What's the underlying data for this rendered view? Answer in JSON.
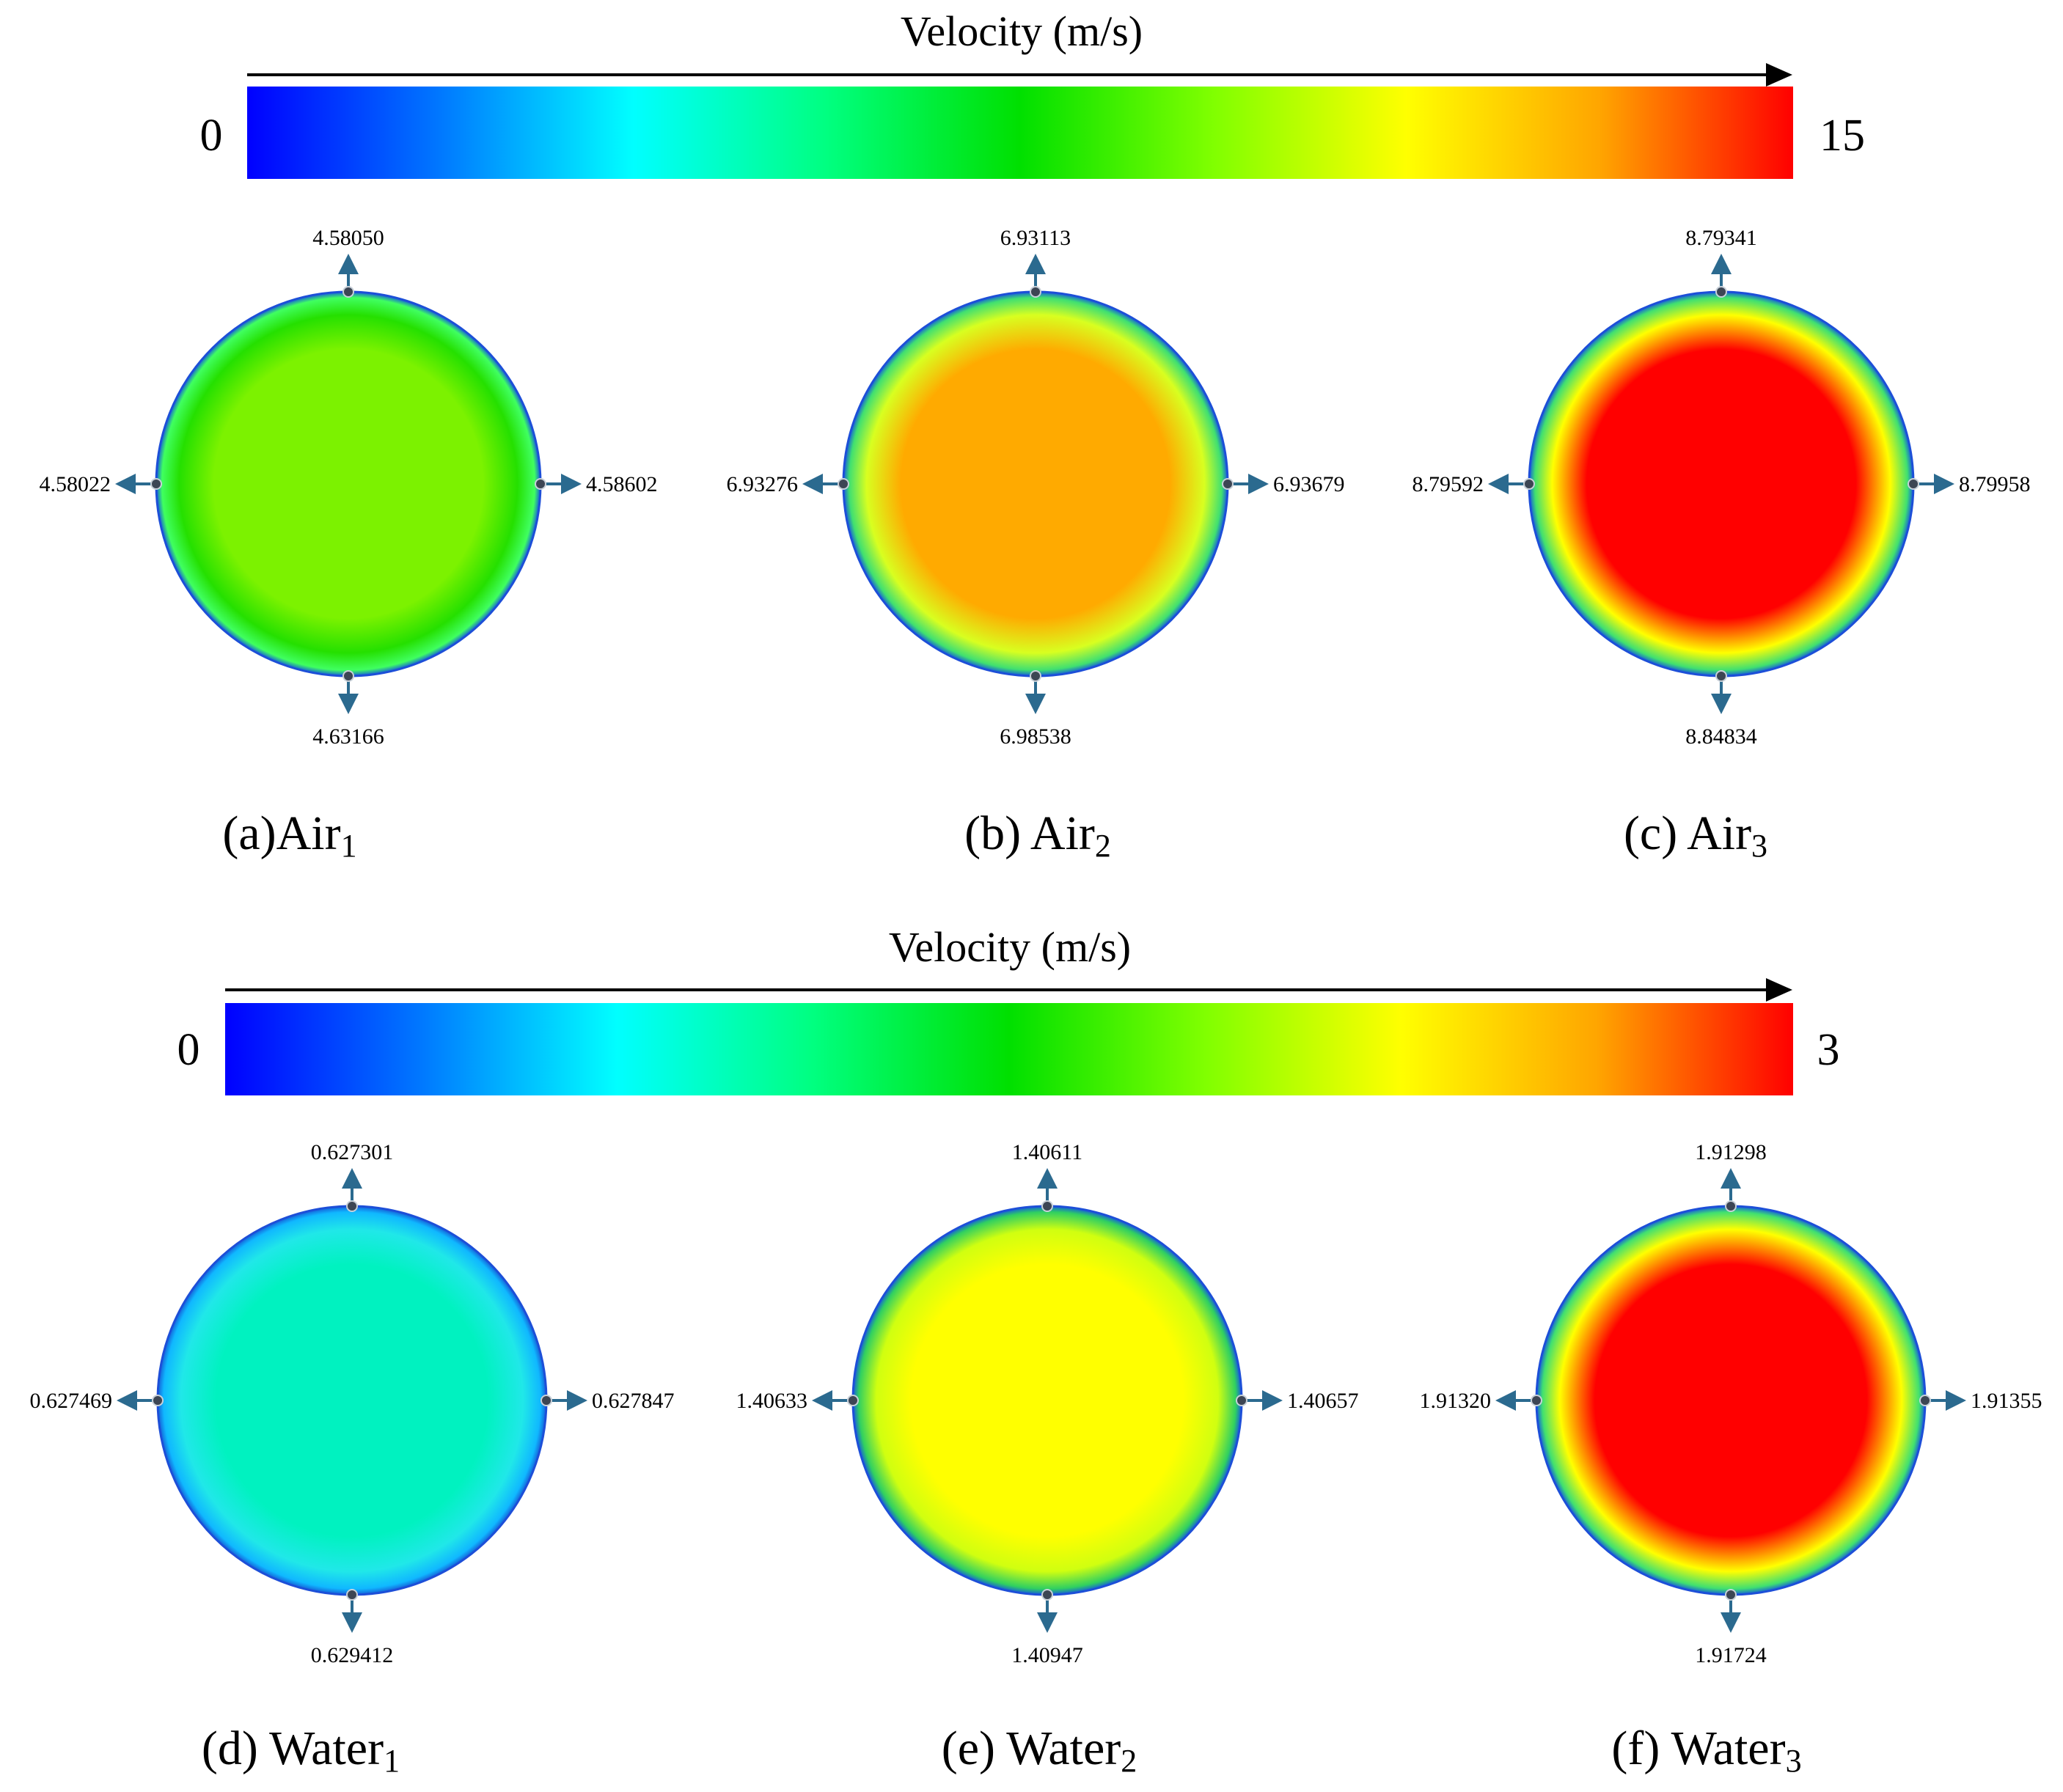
{
  "figure": {
    "air_scale": {
      "title": "Velocity (m/s)",
      "min_label": "0",
      "max_label": "15",
      "min": 0,
      "max": 15
    },
    "water_scale": {
      "title": "Velocity (m/s)",
      "min_label": "0",
      "max_label": "3",
      "min": 0,
      "max": 3
    },
    "colormap": [
      "#0000ff",
      "#0078ff",
      "#00ffff",
      "#00ff80",
      "#00e000",
      "#80ff00",
      "#ffff00",
      "#ffa500",
      "#ff0000"
    ],
    "panels": [
      {
        "id": "a",
        "prefix": "(a)",
        "base": "Air",
        "sub": "1",
        "fill_ring": [
          "#40ff60",
          "#25e000"
        ],
        "fill_core": "#7cf200",
        "values": {
          "top": "4.58050",
          "left": "4.58022",
          "right": "4.58602",
          "bottom": "4.63166"
        }
      },
      {
        "id": "b",
        "prefix": "(b) ",
        "base": "Air",
        "sub": "2",
        "fill_ring": [
          "#40e070",
          "#d8ff20"
        ],
        "fill_core": "#ffaa00",
        "values": {
          "top": "6.93113",
          "left": "6.93276",
          "right": "6.93679",
          "bottom": "6.98538"
        }
      },
      {
        "id": "c",
        "prefix": "(c) ",
        "base": "Air",
        "sub": "3",
        "fill_ring": [
          "#40e070",
          "#ffff00"
        ],
        "fill_core": "#ff0000",
        "values": {
          "top": "8.79341",
          "left": "8.79592",
          "right": "8.79958",
          "bottom": "8.84834"
        }
      },
      {
        "id": "d",
        "prefix": "(d) ",
        "base": "Water",
        "sub": "1",
        "fill_ring": [
          "#10b8ff",
          "#20e8e8"
        ],
        "fill_core": "#00f2c0",
        "values": {
          "top": "0.627301",
          "left": "0.627469",
          "right": "0.627847",
          "bottom": "0.629412"
        }
      },
      {
        "id": "e",
        "prefix": "(e) ",
        "base": "Water",
        "sub": "2",
        "fill_ring": [
          "#30d060",
          "#d0ff10"
        ],
        "fill_core": "#ffff00",
        "values": {
          "top": "1.40611",
          "left": "1.40633",
          "right": "1.40657",
          "bottom": "1.40947"
        }
      },
      {
        "id": "f",
        "prefix": "(f) ",
        "base": "Water",
        "sub": "3",
        "fill_ring": [
          "#40e070",
          "#ffff00"
        ],
        "fill_core": "#ff0000",
        "values": {
          "top": "1.91298",
          "left": "1.91320",
          "right": "1.91355",
          "bottom": "1.91724"
        }
      }
    ]
  }
}
